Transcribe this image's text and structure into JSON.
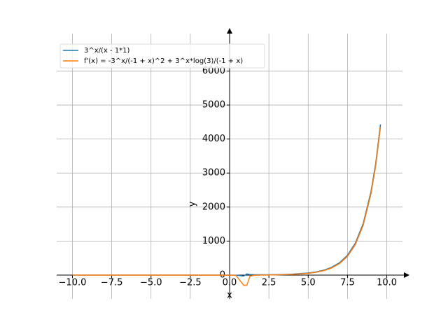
{
  "chart_data": {
    "type": "line",
    "xlabel": "x",
    "ylabel": "y",
    "x": [
      -10,
      -8,
      -6,
      -4,
      -2,
      0,
      0.4,
      0.9,
      1.1,
      1.3,
      1.6,
      2,
      3,
      4,
      5,
      5.5,
      6,
      6.5,
      7,
      7.5,
      8,
      8.5,
      9,
      9.3,
      9.6
    ],
    "series": [
      {
        "name": "3^x/(x - 1*1)",
        "color": "#1f77b4",
        "values": [
          0,
          0,
          0,
          0,
          0,
          -1,
          -2.59,
          -26.9,
          33.5,
          13.9,
          9.67,
          9,
          13.5,
          27,
          60.75,
          93.5,
          145.8,
          229.6,
          364.5,
          582.8,
          937.3,
          1515,
          2460,
          3293,
          4430
        ]
      },
      {
        "name": "f'(x) = -3^x/(-1 + x)^2 + 3^x*log(3)/(-1 + x)",
        "color": "#ff7f0e",
        "values": [
          0,
          0,
          0,
          0,
          0,
          -2.1,
          -7.15,
          -298,
          -298,
          -31.1,
          -5.49,
          0.89,
          8.08,
          20.7,
          51.6,
          82,
          131,
          210.5,
          339.7,
          550.6,
          895.8,
          1462.6,
          2395.5,
          3220,
          4352
        ]
      }
    ],
    "xlim": [
      -11,
      11
    ],
    "ylim": [
      -700,
      7100
    ],
    "xticks": [
      {
        "value": -10,
        "label": "−10.0"
      },
      {
        "value": -7.5,
        "label": "−7.5"
      },
      {
        "value": -5,
        "label": "−5.0"
      },
      {
        "value": -2.5,
        "label": "−2.5"
      },
      {
        "value": 0,
        "label": "0.0"
      },
      {
        "value": 2.5,
        "label": "2.5"
      },
      {
        "value": 5,
        "label": "5.0"
      },
      {
        "value": 7.5,
        "label": "7.5"
      },
      {
        "value": 10,
        "label": "10.0"
      }
    ],
    "yticks": [
      0,
      1000,
      2000,
      3000,
      4000,
      5000,
      6000
    ],
    "grid": true,
    "legend": "upper left"
  }
}
